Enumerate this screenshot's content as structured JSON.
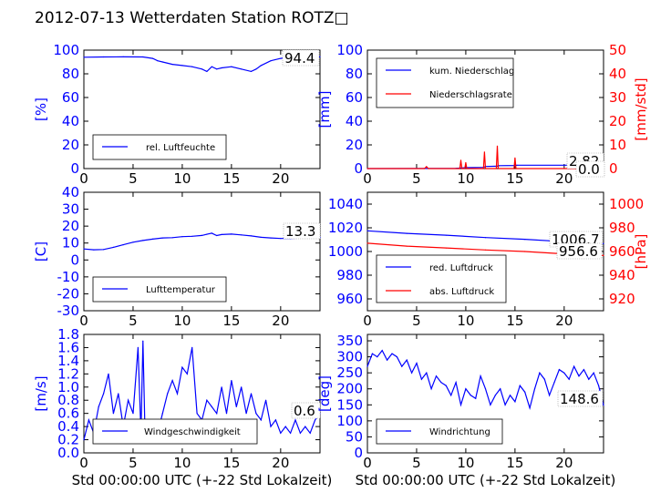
{
  "title": "2012-07-13 Wetterdaten Station ROTZ",
  "title_suffix": "□",
  "shared_xlabel": "Std 00:00:00 UTC (+-22 Std Lokalzeit)",
  "colors": {
    "primary": "#0000ff",
    "secondary": "#ff0000",
    "axis": "#000000"
  },
  "chart_data": [
    {
      "type": "line",
      "panel": "humidity",
      "ylabel": "[%]",
      "xlim": [
        0,
        24
      ],
      "ylim": [
        0,
        100
      ],
      "xticks": [
        0,
        5,
        10,
        15,
        20
      ],
      "yticks": [
        0,
        20,
        40,
        60,
        80,
        100
      ],
      "legend": [
        "rel. Luftfeuchte"
      ],
      "legend_position": "lower-left",
      "last_value_label": "94.4",
      "series": [
        {
          "name": "rel. Luftfeuchte",
          "color": "#0000ff",
          "x": [
            0,
            2,
            4,
            6,
            7,
            7.5,
            8,
            9,
            10,
            11,
            12,
            12.5,
            13,
            13.5,
            14,
            15,
            16,
            17,
            17.5,
            18,
            19,
            20,
            21,
            22,
            23,
            24
          ],
          "y": [
            94,
            94.2,
            94.3,
            94.2,
            93,
            91,
            90,
            88,
            87,
            86,
            84,
            82,
            86,
            84,
            85,
            86,
            84,
            82,
            84,
            87,
            91,
            93,
            94,
            94.3,
            94.4,
            94.4
          ]
        }
      ]
    },
    {
      "type": "line",
      "panel": "precipitation",
      "ylabel": "[mm]",
      "ylabel_right": "[mm/std]",
      "xlim": [
        0,
        24
      ],
      "ylim": [
        0,
        100
      ],
      "ylim_right": [
        0,
        50
      ],
      "xticks": [
        0,
        5,
        10,
        15,
        20
      ],
      "yticks": [
        0,
        20,
        40,
        60,
        80,
        100
      ],
      "yticks_right": [
        0,
        10,
        20,
        30,
        40,
        50
      ],
      "legend": [
        "kum. Niederschlag",
        "Niederschlagsrate"
      ],
      "legend_position": "top-left",
      "last_value_labels": [
        "2.82",
        "0.0"
      ],
      "series": [
        {
          "name": "kum. Niederschlag",
          "color": "#0000ff",
          "axis": "left",
          "x": [
            0,
            6,
            9,
            10,
            11.8,
            12,
            13.2,
            13.4,
            15,
            15.2,
            24
          ],
          "y": [
            0,
            0.1,
            0.2,
            0.8,
            1.0,
            1.8,
            2.0,
            2.5,
            2.6,
            2.82,
            2.82
          ]
        },
        {
          "name": "Niederschlagsrate",
          "color": "#ff0000",
          "axis": "right",
          "x": [
            0,
            5.8,
            6,
            6.2,
            9.4,
            9.5,
            9.6,
            9.9,
            10,
            10.1,
            11.8,
            11.9,
            12.0,
            13.1,
            13.2,
            13.3,
            14.9,
            15.0,
            15.1,
            24
          ],
          "y": [
            0,
            0,
            0.8,
            0,
            0,
            3.5,
            0,
            0,
            2.5,
            0,
            0,
            7,
            0,
            0,
            9.5,
            0,
            0,
            4.5,
            0,
            0
          ]
        }
      ]
    },
    {
      "type": "line",
      "panel": "temperature",
      "ylabel": "[C]",
      "xlim": [
        0,
        24
      ],
      "ylim": [
        -30,
        40
      ],
      "xticks": [
        0,
        5,
        10,
        15,
        20
      ],
      "yticks": [
        -30,
        -20,
        -10,
        0,
        10,
        20,
        30,
        40
      ],
      "legend": [
        "Lufttemperatur"
      ],
      "legend_position": "lower-left",
      "last_value_label": "13.3",
      "series": [
        {
          "name": "Lufttemperatur",
          "color": "#0000ff",
          "x": [
            0,
            1,
            2,
            3,
            4,
            5,
            6,
            7,
            8,
            9,
            10,
            11,
            12,
            12.5,
            13,
            13.5,
            14,
            15,
            16,
            17,
            18,
            19,
            20,
            21,
            22,
            23,
            24
          ],
          "y": [
            6.5,
            6.0,
            6.2,
            7.5,
            9.0,
            10.5,
            11.5,
            12.3,
            13.0,
            13.2,
            13.8,
            14.0,
            14.5,
            15.2,
            15.8,
            14.4,
            15.0,
            15.3,
            14.8,
            14.2,
            13.4,
            13.0,
            12.7,
            12.7,
            12.9,
            13.1,
            13.3
          ]
        }
      ]
    },
    {
      "type": "line",
      "panel": "pressure",
      "ylabel": "",
      "ylabel_right": "[hPa]",
      "xlim": [
        0,
        24
      ],
      "ylim": [
        950,
        1050
      ],
      "ylim_right": [
        910,
        1010
      ],
      "xticks": [
        0,
        5,
        10,
        15,
        20
      ],
      "yticks": [
        960,
        980,
        1000,
        1020,
        1040
      ],
      "yticks_right": [
        920,
        940,
        960,
        980,
        1000
      ],
      "legend": [
        "red. Luftdruck",
        "abs. Luftdruck"
      ],
      "legend_position": "lower-left",
      "last_value_labels": [
        "1006.7",
        "956.6"
      ],
      "series": [
        {
          "name": "red. Luftdruck",
          "color": "#0000ff",
          "axis": "left",
          "x": [
            0,
            4,
            8,
            12,
            16,
            20,
            22,
            24
          ],
          "y": [
            1017.5,
            1015.3,
            1013.8,
            1011.8,
            1010.3,
            1008.3,
            1007.3,
            1006.7
          ]
        },
        {
          "name": "abs. Luftdruck",
          "color": "#ff0000",
          "axis": "right",
          "x": [
            0,
            4,
            8,
            12,
            16,
            20,
            22,
            24
          ],
          "y": [
            967,
            964.5,
            963,
            961.3,
            960,
            958,
            957.2,
            956.6
          ]
        }
      ]
    },
    {
      "type": "line",
      "panel": "wind-speed",
      "ylabel": "[m/s]",
      "xlabel": "Std 00:00:00 UTC (+-22 Std Lokalzeit)",
      "xlim": [
        0,
        24
      ],
      "ylim": [
        0,
        1.8
      ],
      "xticks": [
        0,
        5,
        10,
        15,
        20
      ],
      "yticks": [
        0.0,
        0.2,
        0.4,
        0.6,
        0.8,
        1.0,
        1.2,
        1.4,
        1.6,
        1.8
      ],
      "legend": [
        "Windgeschwindigkeit"
      ],
      "legend_position": "lower-center",
      "last_value_label": "0.6",
      "series": [
        {
          "name": "Windgeschwindigkeit",
          "color": "#0000ff",
          "x": [
            0,
            0.5,
            1,
            1.5,
            2,
            2.5,
            3,
            3.5,
            4,
            4.5,
            5,
            5.5,
            5.8,
            6,
            6.2,
            6.5,
            7,
            7.5,
            8,
            8.5,
            9,
            9.5,
            10,
            10.5,
            11,
            11.5,
            12,
            12.5,
            13,
            13.5,
            14,
            14.5,
            15,
            15.5,
            16,
            16.5,
            17,
            17.5,
            18,
            18.5,
            19,
            19.5,
            20,
            20.5,
            21,
            21.5,
            22,
            22.5,
            23,
            23.5,
            24
          ],
          "y": [
            0.2,
            0.5,
            0.3,
            0.7,
            0.9,
            1.2,
            0.6,
            0.9,
            0.4,
            0.8,
            0.6,
            1.6,
            0.3,
            1.7,
            0.4,
            0.3,
            0.4,
            0.3,
            0.6,
            0.9,
            1.1,
            0.9,
            1.3,
            1.2,
            1.6,
            0.6,
            0.5,
            0.8,
            0.7,
            0.6,
            1.0,
            0.6,
            1.1,
            0.7,
            1.0,
            0.6,
            0.9,
            0.6,
            0.5,
            0.8,
            0.4,
            0.5,
            0.3,
            0.4,
            0.3,
            0.5,
            0.3,
            0.4,
            0.3,
            0.5,
            0.6
          ]
        }
      ]
    },
    {
      "type": "line",
      "panel": "wind-direction",
      "ylabel": "[deg]",
      "xlabel": "Std 00:00:00 UTC (+-22 Std Lokalzeit)",
      "xlim": [
        0,
        24
      ],
      "ylim": [
        0,
        370
      ],
      "xticks": [
        0,
        5,
        10,
        15,
        20
      ],
      "yticks": [
        0,
        50,
        100,
        150,
        200,
        250,
        300,
        350
      ],
      "legend": [
        "Windrichtung"
      ],
      "legend_position": "lower-left",
      "last_value_label": "148.6",
      "series": [
        {
          "name": "Windrichtung",
          "color": "#0000ff",
          "x": [
            0,
            0.5,
            1,
            1.5,
            2,
            2.5,
            3,
            3.5,
            4,
            4.5,
            5,
            5.5,
            6,
            6.5,
            7,
            7.5,
            8,
            8.5,
            9,
            9.5,
            10,
            10.5,
            11,
            11.5,
            12,
            12.5,
            13,
            13.5,
            14,
            14.5,
            15,
            15.5,
            16,
            16.5,
            17,
            17.5,
            18,
            18.5,
            19,
            19.5,
            20,
            20.5,
            21,
            21.5,
            22,
            22.5,
            23,
            23.5,
            24
          ],
          "y": [
            270,
            310,
            300,
            320,
            290,
            310,
            300,
            270,
            290,
            250,
            280,
            230,
            250,
            200,
            240,
            220,
            210,
            180,
            220,
            150,
            200,
            180,
            170,
            240,
            200,
            150,
            180,
            200,
            150,
            180,
            160,
            210,
            190,
            140,
            200,
            250,
            230,
            180,
            220,
            260,
            250,
            230,
            270,
            240,
            260,
            230,
            250,
            210,
            148.6
          ]
        }
      ]
    }
  ]
}
